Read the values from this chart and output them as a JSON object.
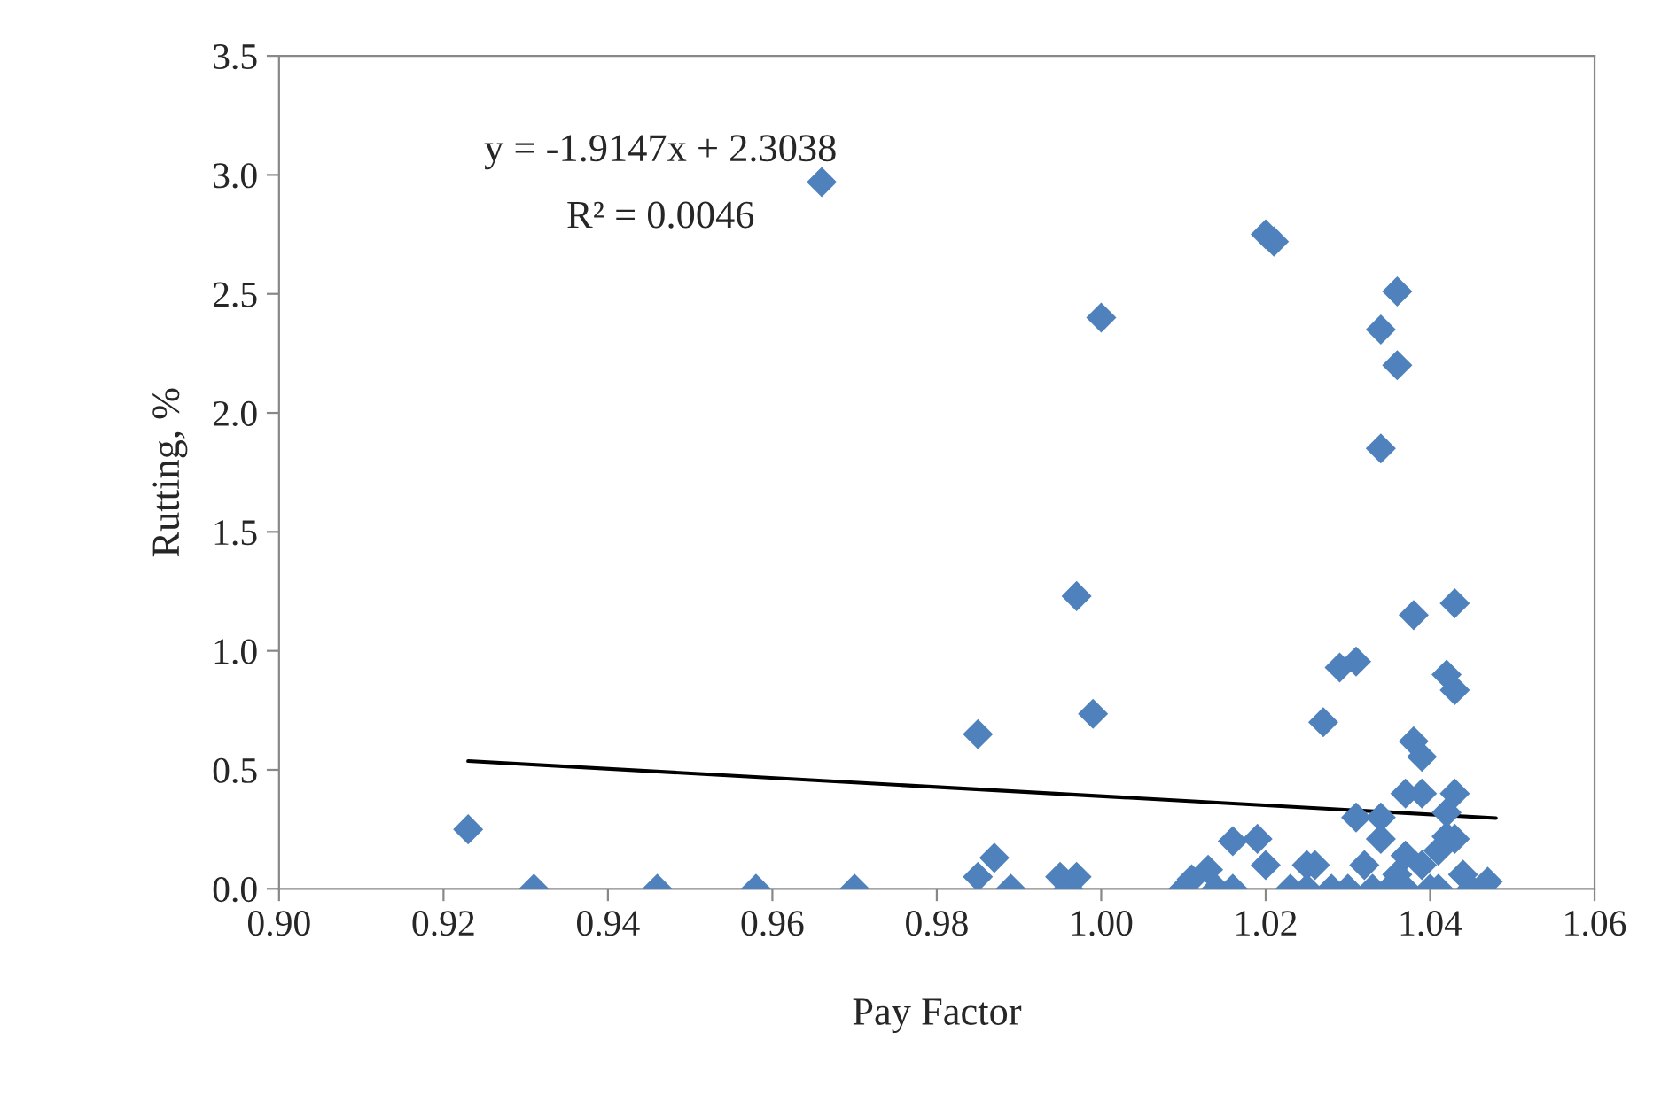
{
  "chart_data": {
    "type": "scatter",
    "xlabel": "Pay Factor",
    "ylabel": "Rutting, %",
    "annotations": [
      "y = -1.9147x + 2.3038",
      "R² = 0.0046"
    ],
    "series": [
      {
        "color": "#4f81bd",
        "marker": "diamond",
        "x": [
          0.923,
          0.931,
          0.946,
          0.958,
          0.966,
          0.97,
          0.985,
          0.985,
          0.987,
          0.989,
          0.995,
          0.996,
          0.997,
          0.997,
          0.999,
          1.0,
          1.01,
          1.011,
          1.013,
          1.014,
          1.016,
          1.016,
          1.019,
          1.02,
          1.02,
          1.021,
          1.023,
          1.025,
          1.025,
          1.026,
          1.027,
          1.028,
          1.029,
          1.031,
          1.03,
          1.031,
          1.032,
          1.033,
          1.034,
          1.034,
          1.034,
          1.034,
          1.035,
          1.036,
          1.036,
          1.036,
          1.037,
          1.037,
          1.037,
          1.038,
          1.038,
          1.039,
          1.039,
          1.039,
          1.04,
          1.041,
          1.041,
          1.042,
          1.042,
          1.042,
          1.043,
          1.043,
          1.043,
          1.043,
          1.044,
          1.045,
          1.047
        ],
        "values": [
          0.25,
          0,
          0,
          0,
          2.97,
          0,
          0.05,
          0.65,
          0.13,
          0,
          0.05,
          0,
          0.05,
          1.23,
          0.735,
          2.4,
          0,
          0.04,
          0.08,
          0,
          0.2,
          0,
          0.21,
          0.1,
          2.75,
          2.72,
          0,
          0.1,
          0,
          0.1,
          0.7,
          0,
          0.93,
          0.955,
          0,
          0.3,
          0.1,
          0,
          0.3,
          0.21,
          2.35,
          1.85,
          0,
          0.06,
          2.51,
          2.2,
          0.14,
          0.4,
          0,
          1.15,
          0.62,
          0.555,
          0.4,
          0.1,
          0,
          0.16,
          0,
          0.9,
          0.32,
          0.22,
          1.2,
          0.835,
          0.4,
          0.21,
          0.06,
          0,
          0.03
        ]
      },
      {
        "type": "line",
        "color": "#000000",
        "marker": "none",
        "line_style": "solid",
        "x": [
          0.923,
          1.048
        ],
        "values": [
          0.537,
          0.297
        ]
      }
    ],
    "xlim": [
      0.9,
      1.06
    ],
    "xticks": [
      {
        "value": 0.9,
        "label": "0.90"
      },
      {
        "value": 0.92,
        "label": "0.92"
      },
      {
        "value": 0.94,
        "label": "0.94"
      },
      {
        "value": 0.96,
        "label": "0.96"
      },
      {
        "value": 0.98,
        "label": "0.98"
      },
      {
        "value": 1.0,
        "label": "1.00"
      },
      {
        "value": 1.02,
        "label": "1.02"
      },
      {
        "value": 1.04,
        "label": "1.04"
      },
      {
        "value": 1.06,
        "label": "1.06"
      }
    ],
    "ylim": [
      0,
      3.5
    ],
    "yticks": [
      {
        "value": 0,
        "label": "0.0"
      },
      {
        "value": 0.5,
        "label": "0.5"
      },
      {
        "value": 1.0,
        "label": "1.0"
      },
      {
        "value": 1.5,
        "label": "1.5"
      },
      {
        "value": 2.0,
        "label": "2.0"
      },
      {
        "value": 2.5,
        "label": "2.5"
      },
      {
        "value": 3.0,
        "label": "3.0"
      },
      {
        "value": 3.5,
        "label": "3.5"
      }
    ],
    "grid": false,
    "legend": false
  }
}
